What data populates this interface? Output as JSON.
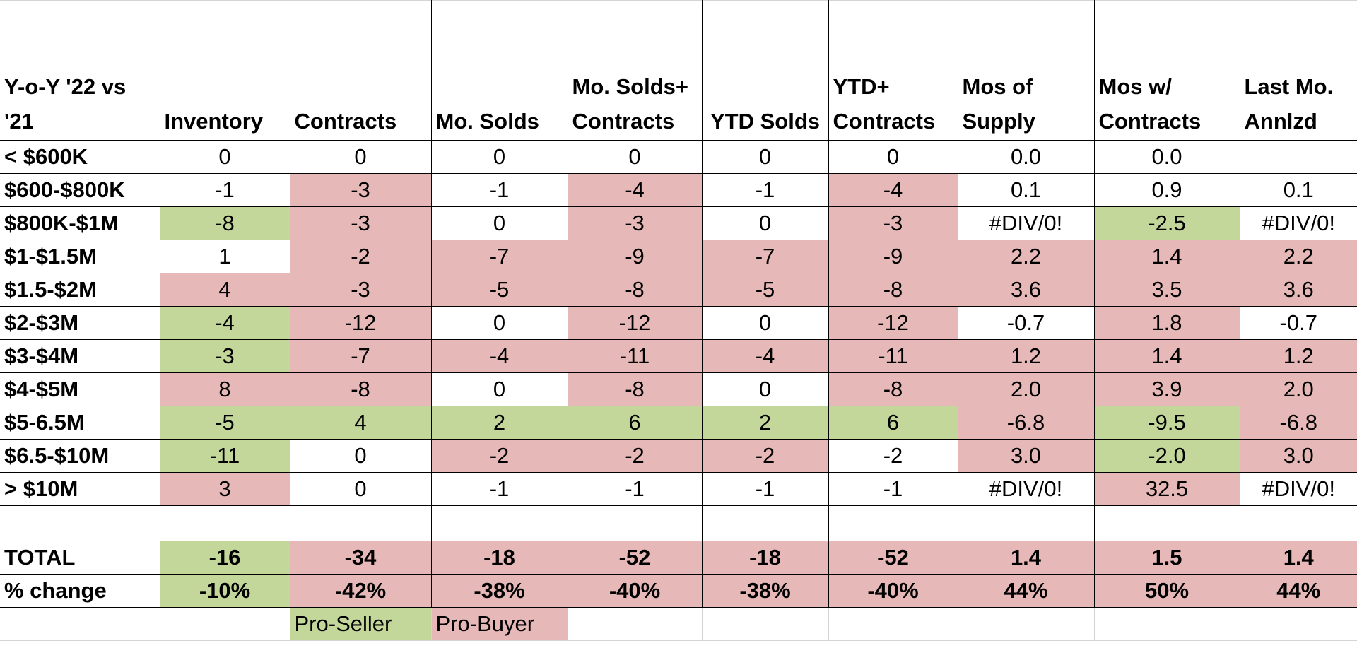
{
  "header": [
    "Y-o-Y '22 vs '21",
    "Inventory",
    "Contracts",
    "Mo. Solds",
    "Mo. Solds+ Contracts",
    "YTD Solds",
    "YTD+ Contracts",
    "Mos of Supply",
    "Mos w/ Contracts",
    "Last Mo. Annlzd"
  ],
  "rows": [
    {
      "label": "< $600K",
      "cells": [
        "0",
        "0",
        "0",
        "0",
        "0",
        "0",
        "0.0",
        "0.0",
        ""
      ],
      "colors": [
        "",
        "",
        "",
        "",
        "",
        "",
        "",
        "",
        ""
      ]
    },
    {
      "label": "$600-$800K",
      "cells": [
        "-1",
        "-3",
        "-1",
        "-4",
        "-1",
        "-4",
        "0.1",
        "0.9",
        "0.1"
      ],
      "colors": [
        "",
        "r",
        "",
        "r",
        "",
        "r",
        "",
        "",
        ""
      ]
    },
    {
      "label": "$800K-$1M",
      "cells": [
        "-8",
        "-3",
        "0",
        "-3",
        "0",
        "-3",
        "#DIV/0!",
        "-2.5",
        "#DIV/0!"
      ],
      "colors": [
        "g",
        "r",
        "",
        "r",
        "",
        "r",
        "",
        "g",
        ""
      ]
    },
    {
      "label": "$1-$1.5M",
      "cells": [
        "1",
        "-2",
        "-7",
        "-9",
        "-7",
        "-9",
        "2.2",
        "1.4",
        "2.2"
      ],
      "colors": [
        "",
        "r",
        "r",
        "r",
        "r",
        "r",
        "r",
        "r",
        "r"
      ]
    },
    {
      "label": "$1.5-$2M",
      "cells": [
        "4",
        "-3",
        "-5",
        "-8",
        "-5",
        "-8",
        "3.6",
        "3.5",
        "3.6"
      ],
      "colors": [
        "r",
        "r",
        "r",
        "r",
        "r",
        "r",
        "r",
        "r",
        "r"
      ]
    },
    {
      "label": "$2-$3M",
      "cells": [
        "-4",
        "-12",
        "0",
        "-12",
        "0",
        "-12",
        "-0.7",
        "1.8",
        "-0.7"
      ],
      "colors": [
        "g",
        "r",
        "",
        "r",
        "",
        "r",
        "",
        "r",
        ""
      ]
    },
    {
      "label": "$3-$4M",
      "cells": [
        "-3",
        "-7",
        "-4",
        "-11",
        "-4",
        "-11",
        "1.2",
        "1.4",
        "1.2"
      ],
      "colors": [
        "g",
        "r",
        "r",
        "r",
        "r",
        "r",
        "r",
        "r",
        "r"
      ]
    },
    {
      "label": "$4-$5M",
      "cells": [
        "8",
        "-8",
        "0",
        "-8",
        "0",
        "-8",
        "2.0",
        "3.9",
        "2.0"
      ],
      "colors": [
        "r",
        "r",
        "",
        "r",
        "",
        "r",
        "r",
        "r",
        "r"
      ]
    },
    {
      "label": "$5-6.5M",
      "cells": [
        "-5",
        "4",
        "2",
        "6",
        "2",
        "6",
        "-6.8",
        "-9.5",
        "-6.8"
      ],
      "colors": [
        "g",
        "g",
        "g",
        "g",
        "g",
        "g",
        "r",
        "g",
        "r"
      ]
    },
    {
      "label": "$6.5-$10M",
      "cells": [
        "-11",
        "0",
        "-2",
        "-2",
        "-2",
        "-2",
        "3.0",
        "-2.0",
        "3.0"
      ],
      "colors": [
        "g",
        "",
        "r",
        "r",
        "r",
        "",
        "r",
        "g",
        "r"
      ]
    },
    {
      "label": "> $10M",
      "cells": [
        "3",
        "0",
        "-1",
        "-1",
        "-1",
        "-1",
        "#DIV/0!",
        "32.5",
        "#DIV/0!"
      ],
      "colors": [
        "r",
        "",
        "",
        "",
        "",
        "",
        "",
        "r",
        ""
      ]
    }
  ],
  "total": {
    "label": "TOTAL",
    "cells": [
      "-16",
      "-34",
      "-18",
      "-52",
      "-18",
      "-52",
      "1.4",
      "1.5",
      "1.4"
    ],
    "colors": [
      "g",
      "r",
      "r",
      "r",
      "r",
      "r",
      "r",
      "r",
      "r"
    ]
  },
  "pct": {
    "label": "% change",
    "cells": [
      "-10%",
      "-42%",
      "-38%",
      "-40%",
      "-38%",
      "-40%",
      "44%",
      "50%",
      "44%"
    ],
    "colors": [
      "g",
      "r",
      "r",
      "r",
      "r",
      "r",
      "r",
      "r",
      "r"
    ]
  },
  "legend": {
    "pro_seller": "Pro-Seller",
    "pro_buyer": "Pro-Buyer",
    "seller_color": "#c4d79b",
    "buyer_color": "#e6b8b7"
  }
}
